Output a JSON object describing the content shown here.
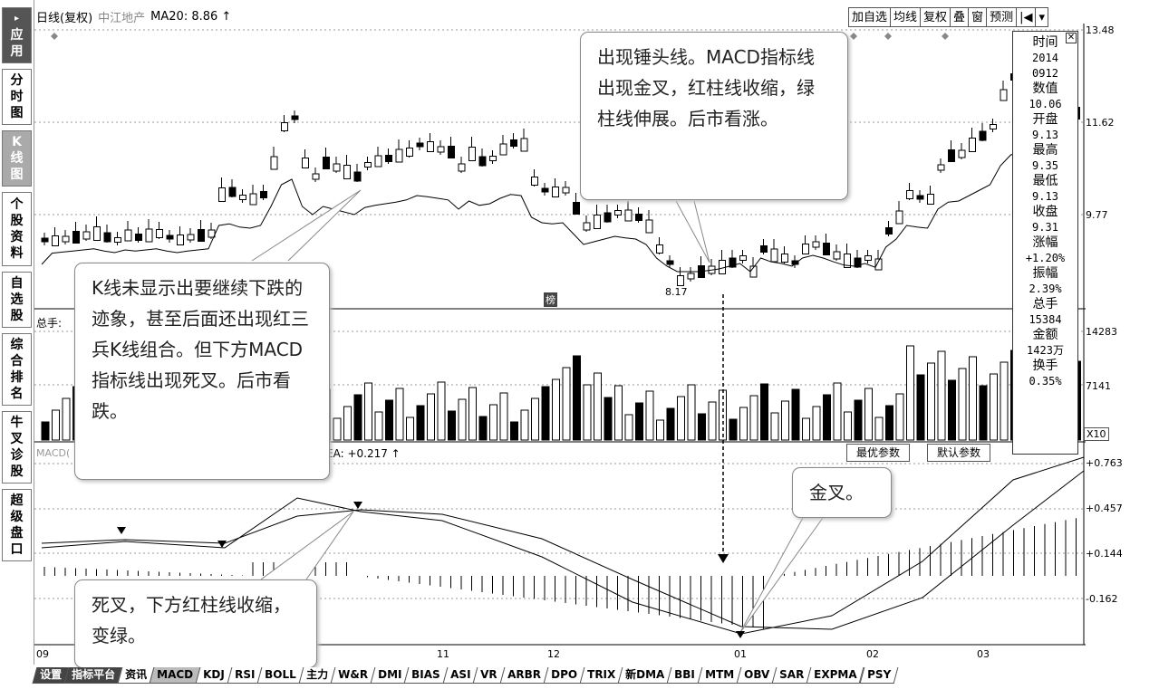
{
  "sidebar": {
    "items": [
      {
        "label": "应用",
        "prefix": "▸"
      },
      {
        "label": "分时图"
      },
      {
        "label": "K线图"
      },
      {
        "label": "个股资料"
      },
      {
        "label": "自选股"
      },
      {
        "label": "综合排名"
      },
      {
        "label": "牛叉诊股"
      },
      {
        "label": "超级盘口"
      }
    ]
  },
  "header": {
    "period": "日线(复权)",
    "stock_name": "中江地产",
    "ma_label": "MA20: 8.86 ↑"
  },
  "toolbar": [
    "加自选",
    "均线",
    "复权",
    "叠",
    "窗",
    "预测",
    "|◀",
    "▾"
  ],
  "price_axis": [
    "13.48",
    "11.62",
    "9.77"
  ],
  "volume_axis": [
    "14283",
    "7141",
    "X10"
  ],
  "macd_axis": [
    "+0.763",
    "+0.457",
    "+0.144",
    "-0.162"
  ],
  "volume_label": "总手:",
  "macd_label": "MACD(",
  "macd_value": "EA: +0.217 ↑",
  "low_marker": "8.17",
  "bang_marker": "榜",
  "x_axis": [
    "09",
    "11",
    "12",
    "01",
    "02",
    "03"
  ],
  "info_panel": {
    "rows": [
      {
        "label": "时间",
        "value": "2014\n0912"
      },
      {
        "label": "数值",
        "value": "10.06"
      },
      {
        "label": "开盘",
        "value": "9.13"
      },
      {
        "label": "最高",
        "value": "9.35"
      },
      {
        "label": "最低",
        "value": "9.13"
      },
      {
        "label": "收盘",
        "value": "9.31"
      },
      {
        "label": "涨幅",
        "value": "+1.20%"
      },
      {
        "label": "振幅",
        "value": "2.39%"
      },
      {
        "label": "总手",
        "value": "15384"
      },
      {
        "label": "金额",
        "value": "1423万"
      },
      {
        "label": "换手",
        "value": "0.35%"
      }
    ]
  },
  "param_buttons": [
    "最优参数",
    "默认参数"
  ],
  "callouts": {
    "hammer": "出现锤头线。MACD指标线出现金叉，红柱线收缩，绿柱线伸展。后市看涨。",
    "kline": "K线未显示出要继续下跌的迹象，甚至后面还出现红三兵K线组合。但下方MACD指标线出现死叉。后市看跌。",
    "golden": "金叉。",
    "dead": "死叉，下方红柱线收缩，变绿。"
  },
  "bottom_tabs": [
    "设置",
    "指标平台",
    "资讯",
    "MACD",
    "KDJ",
    "RSI",
    "BOLL",
    "主力",
    "W&R",
    "DMI",
    "BIAS",
    "ASI",
    "VR",
    "ARBR",
    "DPO",
    "TRIX",
    "新DMA",
    "BBI",
    "MTM",
    "OBV",
    "SAR",
    "EXPMA",
    "PSY"
  ]
}
